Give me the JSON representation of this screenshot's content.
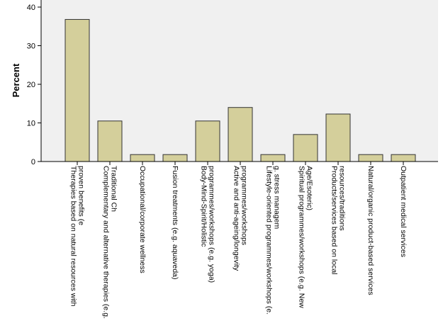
{
  "chart_data": {
    "type": "bar",
    "ylabel": "Percent",
    "ylim": [
      0,
      40
    ],
    "yticks": [
      0,
      10,
      20,
      30,
      40
    ],
    "grid": false,
    "colors": {
      "plot_background": "#f0f0f0",
      "bar_fill": "#d4cf9b",
      "bar_stroke": "#333333",
      "axis": "#000000"
    },
    "categories": [
      [
        "Therapies based on natural resources with",
        "proven benefits (e"
      ],
      [
        "Complementary and alternative therapies (e.g.",
        "Traditional Ch"
      ],
      [
        "Occupational/corporate wellness"
      ],
      [
        "Fusion treatments (e.g. aquaveda)"
      ],
      [
        "Body-Mind-Spirit/Holistic",
        "programmes/workshops (e.g. yoga)"
      ],
      [
        "Active and anti-ageing/longevity",
        "programmes/workshops"
      ],
      [
        "Lifestyle-oriented programmes/workshops (e.",
        "g. stress managem"
      ],
      [
        "Spiritual programmes/workshops (e.g. New",
        "Age/Esoteric)"
      ],
      [
        "Products/services based on local",
        "resources/traditions"
      ],
      [
        "Natural/organic product-based services"
      ],
      [
        "Outpatient medical services"
      ]
    ],
    "values": [
      36.8,
      10.5,
      1.8,
      1.8,
      10.5,
      14.0,
      1.8,
      7.0,
      12.3,
      1.8,
      1.8
    ]
  }
}
